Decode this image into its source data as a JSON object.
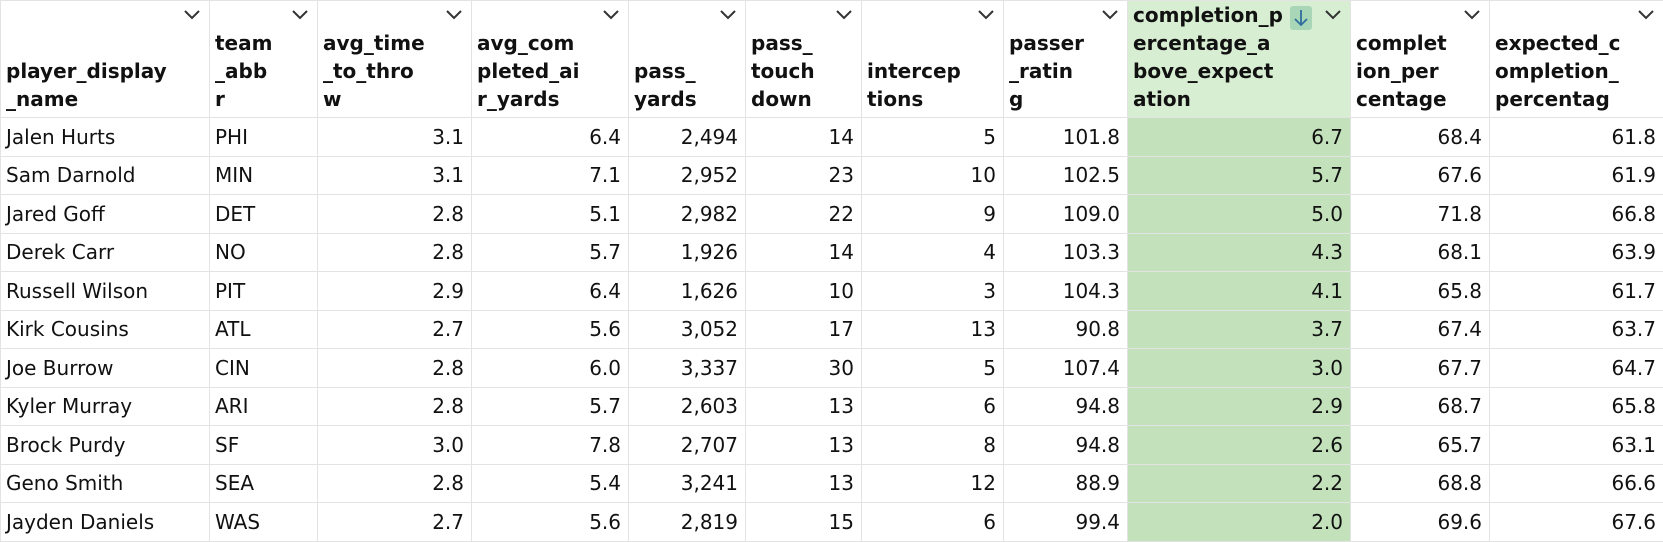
{
  "table": {
    "columns": [
      "player_display_name",
      "team_abbr",
      "avg_time_to_throw",
      "avg_completed_air_yards",
      "pass_yards",
      "pass_touchdown",
      "interceptions",
      "passer_rating",
      "completion_percentage_above_expectation",
      "completion_percentage",
      "expected_completion_percentag"
    ],
    "rows": [
      [
        "Jalen Hurts",
        "PHI",
        "3.1",
        "6.4",
        "2,494",
        "14",
        "5",
        "101.8",
        "6.7",
        "68.4",
        "61.8"
      ],
      [
        "Sam Darnold",
        "MIN",
        "3.1",
        "7.1",
        "2,952",
        "23",
        "10",
        "102.5",
        "5.7",
        "67.6",
        "61.9"
      ],
      [
        "Jared Goff",
        "DET",
        "2.8",
        "5.1",
        "2,982",
        "22",
        "9",
        "109.0",
        "5.0",
        "71.8",
        "66.8"
      ],
      [
        "Derek Carr",
        "NO",
        "2.8",
        "5.7",
        "1,926",
        "14",
        "4",
        "103.3",
        "4.3",
        "68.1",
        "63.9"
      ],
      [
        "Russell Wilson",
        "PIT",
        "2.9",
        "6.4",
        "1,626",
        "10",
        "3",
        "104.3",
        "4.1",
        "65.8",
        "61.7"
      ],
      [
        "Kirk Cousins",
        "ATL",
        "2.7",
        "5.6",
        "3,052",
        "17",
        "13",
        "90.8",
        "3.7",
        "67.4",
        "63.7"
      ],
      [
        "Joe Burrow",
        "CIN",
        "2.8",
        "6.0",
        "3,337",
        "30",
        "5",
        "107.4",
        "3.0",
        "67.7",
        "64.7"
      ],
      [
        "Kyler Murray",
        "ARI",
        "2.8",
        "5.7",
        "2,603",
        "13",
        "6",
        "94.8",
        "2.9",
        "68.7",
        "65.8"
      ],
      [
        "Brock Purdy",
        "SF",
        "3.0",
        "7.8",
        "2,707",
        "13",
        "8",
        "94.8",
        "2.6",
        "65.7",
        "63.1"
      ],
      [
        "Geno Smith",
        "SEA",
        "2.8",
        "5.4",
        "3,241",
        "13",
        "12",
        "88.9",
        "2.2",
        "68.8",
        "66.6"
      ],
      [
        "Jayden Daniels",
        "WAS",
        "2.7",
        "5.6",
        "2,819",
        "15",
        "6",
        "99.4",
        "2.0",
        "69.6",
        "67.6"
      ]
    ]
  }
}
